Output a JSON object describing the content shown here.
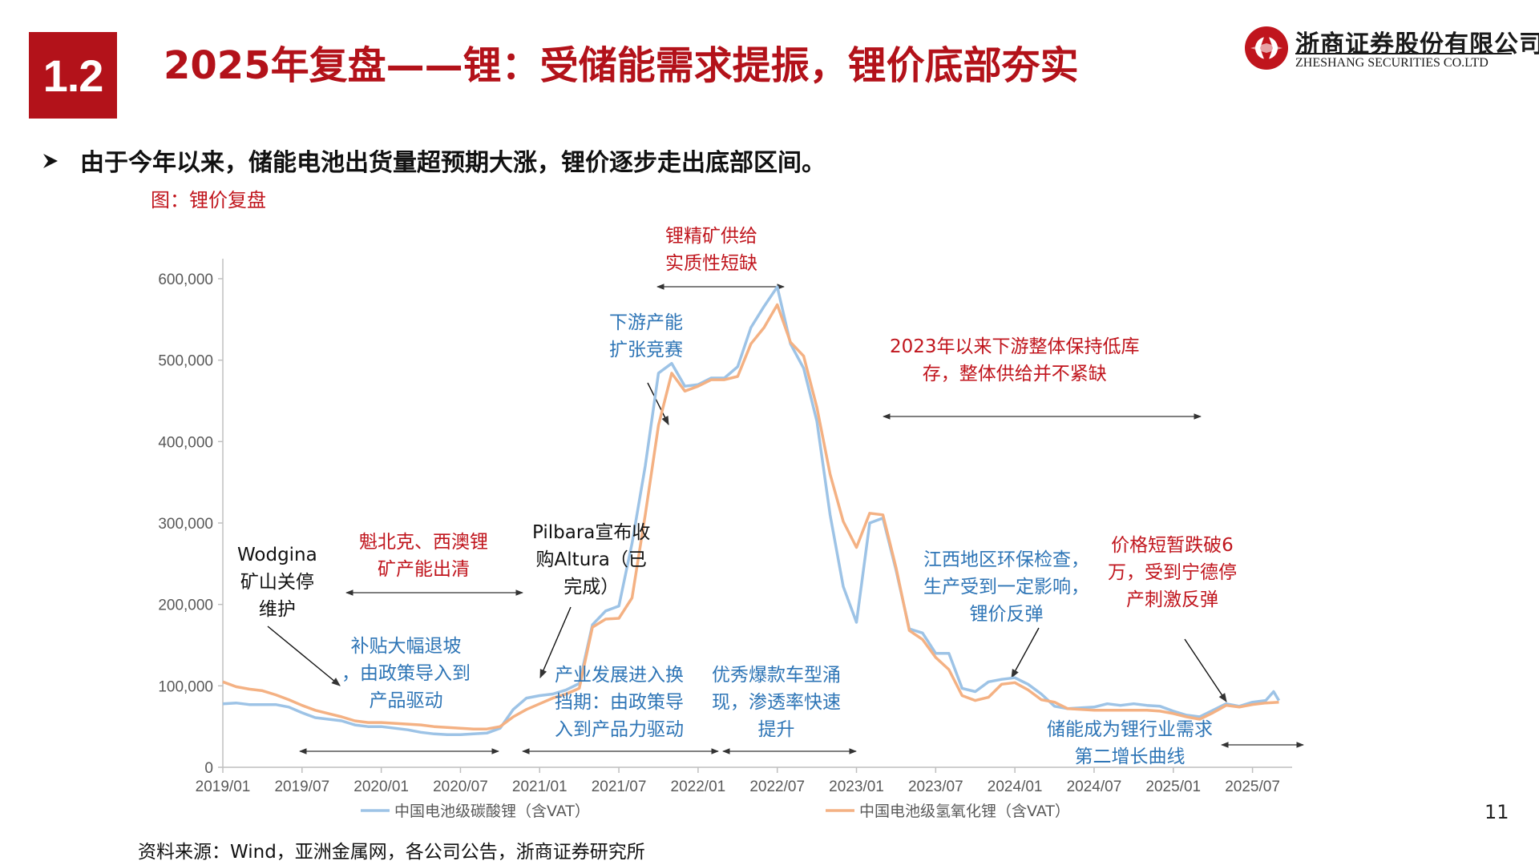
{
  "header": {
    "section_number": "1.2",
    "title": "2025年复盘——锂：受储能需求提振，锂价底部夯实",
    "logo_cn": "浙商证券股份有限公司",
    "logo_en": "ZHESHANG SECURITIES CO.LTD",
    "brand_color": "#b3121a"
  },
  "bullet": {
    "icon": "arrow-bullet-icon",
    "text": "由于今年以来，储能电池出货量超预期大涨，锂价逐步走出底部区间。"
  },
  "figure_caption": "图：锂价复盘",
  "annotations": {
    "wodgina": "Wodgina\n矿山关停\n维护",
    "quebec": "魁北克、西澳锂\n矿产能出清",
    "pilbara": "Pilbara宣布收\n购Altura（已\n完成）",
    "concentrate": "锂精矿供给\n实质性短缺",
    "downstream": "下游产能\n扩张竞赛",
    "destock": "2023年以来下游整体保持低库\n存，整体供给并不紧缺",
    "jiangxi": "江西地区环保检查，\n生产受到一定影响，\n锂价反弹",
    "catl": "价格短暂跌破6\n万，受到宁德停\n产刺激反弹",
    "subsidy": "补贴大幅退坡\n，由政策导入到\n产品驱动",
    "industry": "产业发展进入换\n挡期：由政策导\n入到产品力驱动",
    "ev_models": "优秀爆款车型涌\n现，渗透率快速\n提升",
    "storage": "储能成为锂行业需求\n第二增长曲线"
  },
  "chart_data": {
    "type": "line",
    "title": "",
    "xlabel": "",
    "ylabel": "",
    "ylim": [
      0,
      600000
    ],
    "yticks": [
      0,
      100000,
      200000,
      300000,
      400000,
      500000,
      600000
    ],
    "ytick_labels": [
      "0",
      "100,000",
      "200,000",
      "300,000",
      "400,000",
      "500,000",
      "600,000"
    ],
    "xtick_labels": [
      "2019/01",
      "2019/07",
      "2020/01",
      "2020/07",
      "2021/01",
      "2021/07",
      "2022/01",
      "2022/07",
      "2023/01",
      "2023/07",
      "2024/01",
      "2024/07",
      "2025/01",
      "2025/07"
    ],
    "x_start": "2019/01",
    "legend_position": "bottom",
    "grid": false,
    "series": [
      {
        "name": "中国电池级碳酸锂（含VAT）",
        "color": "#9dc3e6",
        "x": [
          0,
          1,
          2,
          3,
          4,
          5,
          6,
          7,
          8,
          9,
          10,
          11,
          12,
          13,
          14,
          15,
          16,
          17,
          18,
          19,
          20,
          21,
          22,
          23,
          24,
          25,
          26,
          27,
          28,
          29,
          30,
          31,
          32,
          33,
          34,
          35,
          36,
          37,
          38,
          39,
          40,
          41,
          42,
          43,
          44,
          45,
          46,
          47,
          48,
          49,
          50,
          51,
          52,
          53,
          54,
          55,
          56,
          57,
          58,
          59,
          60,
          61,
          62,
          63,
          64,
          65,
          66,
          67,
          68,
          69,
          70,
          71,
          72,
          73,
          74,
          75,
          76,
          77,
          78,
          79,
          79.6,
          80
        ],
        "values": [
          78000,
          79000,
          77000,
          77000,
          77000,
          74000,
          67000,
          61000,
          59000,
          57000,
          52000,
          50000,
          50000,
          48000,
          46000,
          43000,
          41000,
          40000,
          40000,
          41000,
          42000,
          48000,
          71000,
          85000,
          88000,
          90000,
          95000,
          103000,
          175000,
          192000,
          198000,
          275000,
          370000,
          484000,
          496000,
          468000,
          470000,
          478000,
          478000,
          492000,
          540000,
          566000,
          590000,
          520000,
          490000,
          425000,
          310000,
          222000,
          178000,
          300000,
          306000,
          242000,
          170000,
          165000,
          140000,
          140000,
          97000,
          93000,
          105000,
          108000,
          110000,
          102000,
          90000,
          75000,
          72000,
          73000,
          74000,
          78000,
          76000,
          78000,
          76000,
          75000,
          69000,
          64000,
          62000,
          70000,
          78000,
          75000,
          80000,
          82000,
          93000,
          82000
        ]
      },
      {
        "name": "中国电池级氢氧化锂（含VAT）",
        "color": "#f4b183",
        "x": [
          0,
          1,
          2,
          3,
          4,
          5,
          6,
          7,
          8,
          9,
          10,
          11,
          12,
          13,
          14,
          15,
          16,
          17,
          18,
          19,
          20,
          21,
          22,
          23,
          24,
          25,
          26,
          27,
          28,
          29,
          30,
          31,
          32,
          33,
          34,
          35,
          36,
          37,
          38,
          39,
          40,
          41,
          42,
          43,
          44,
          45,
          46,
          47,
          48,
          49,
          50,
          51,
          52,
          53,
          54,
          55,
          56,
          57,
          58,
          59,
          60,
          61,
          62,
          63,
          64,
          65,
          66,
          67,
          68,
          69,
          70,
          71,
          72,
          73,
          74,
          75,
          76,
          77,
          78,
          79,
          80
        ],
        "values": [
          105000,
          99000,
          96000,
          94000,
          89000,
          83000,
          76000,
          70000,
          66000,
          62000,
          57000,
          55000,
          55000,
          54000,
          53000,
          52000,
          50000,
          49000,
          48000,
          47000,
          47000,
          50000,
          62000,
          71000,
          78000,
          85000,
          90000,
          97000,
          172000,
          182000,
          183000,
          208000,
          310000,
          420000,
          484000,
          462000,
          468000,
          476000,
          476000,
          480000,
          520000,
          540000,
          568000,
          522000,
          505000,
          442000,
          360000,
          302000,
          270000,
          312000,
          310000,
          245000,
          168000,
          157000,
          135000,
          120000,
          88000,
          82000,
          86000,
          102000,
          104000,
          95000,
          83000,
          80000,
          72000,
          71000,
          70000,
          70000,
          70000,
          70000,
          70000,
          69000,
          66000,
          62000,
          59000,
          67000,
          76000,
          74000,
          77000,
          79000,
          80000
        ]
      }
    ]
  },
  "page_number": "11",
  "source": "资料来源：Wind，亚洲金属网，各公司公告，浙商证券研究所"
}
